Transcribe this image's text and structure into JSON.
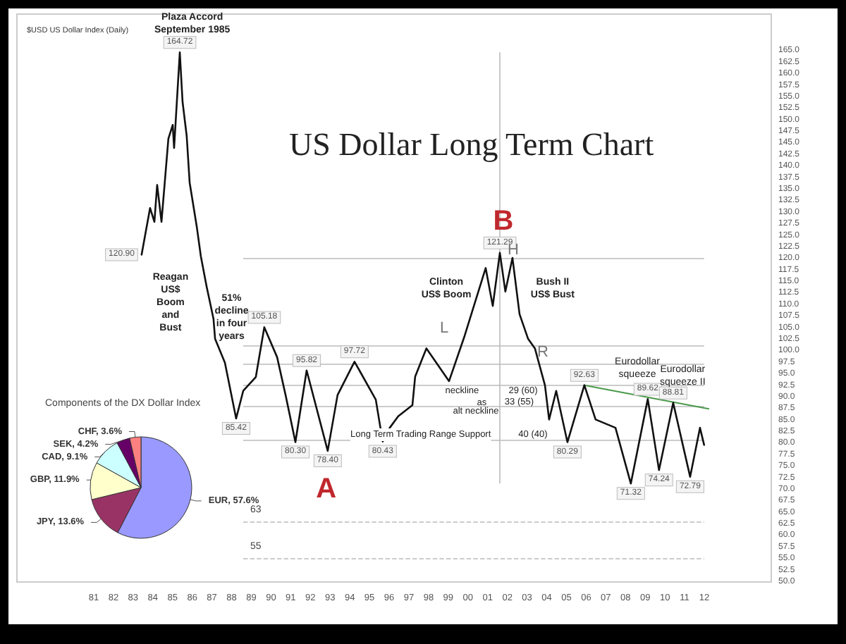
{
  "chart_data": [
    {
      "type": "line",
      "title": "US Dollar Long Term Chart",
      "subtitle": "$USD US Dollar Index (Daily)",
      "xlim": [
        1977.1,
        2015.4
      ],
      "ylim": [
        50,
        173
      ],
      "xticks": [
        {
          "value": 1981,
          "label": "81"
        },
        {
          "value": 1982,
          "label": "82"
        },
        {
          "value": 1983,
          "label": "83"
        },
        {
          "value": 1984,
          "label": "84"
        },
        {
          "value": 1985,
          "label": "85"
        },
        {
          "value": 1986,
          "label": "86"
        },
        {
          "value": 1987,
          "label": "87"
        },
        {
          "value": 1988,
          "label": "88"
        },
        {
          "value": 1989,
          "label": "89"
        },
        {
          "value": 1990,
          "label": "90"
        },
        {
          "value": 1991,
          "label": "91"
        },
        {
          "value": 1992,
          "label": "92"
        },
        {
          "value": 1993,
          "label": "93"
        },
        {
          "value": 1994,
          "label": "94"
        },
        {
          "value": 1995,
          "label": "95"
        },
        {
          "value": 1996,
          "label": "96"
        },
        {
          "value": 1997,
          "label": "97"
        },
        {
          "value": 1998,
          "label": "98"
        },
        {
          "value": 1999,
          "label": "99"
        },
        {
          "value": 2000,
          "label": "00"
        },
        {
          "value": 2001,
          "label": "01"
        },
        {
          "value": 2002,
          "label": "02"
        },
        {
          "value": 2003,
          "label": "03"
        },
        {
          "value": 2004,
          "label": "04"
        },
        {
          "value": 2005,
          "label": "05"
        },
        {
          "value": 2006,
          "label": "06"
        },
        {
          "value": 2007,
          "label": "07"
        },
        {
          "value": 2008,
          "label": "08"
        },
        {
          "value": 2009,
          "label": "09"
        },
        {
          "value": 2010,
          "label": "10"
        },
        {
          "value": 2011,
          "label": "11"
        },
        {
          "value": 2012,
          "label": "12"
        }
      ],
      "yticks": [
        {
          "value": 50,
          "label": "50.0"
        },
        {
          "value": 52.5,
          "label": "52.5"
        },
        {
          "value": 55,
          "label": "55.0"
        },
        {
          "value": 57.5,
          "label": "57.5"
        },
        {
          "value": 60,
          "label": "60.0"
        },
        {
          "value": 62.5,
          "label": "62.5"
        },
        {
          "value": 65,
          "label": "65.0"
        },
        {
          "value": 67.5,
          "label": "67.5"
        },
        {
          "value": 70,
          "label": "70.0"
        },
        {
          "value": 72.5,
          "label": "72.5"
        },
        {
          "value": 75,
          "label": "75.0"
        },
        {
          "value": 77.5,
          "label": "77.5"
        },
        {
          "value": 80,
          "label": "80.0"
        },
        {
          "value": 82.5,
          "label": "82.5"
        },
        {
          "value": 85,
          "label": "85.0"
        },
        {
          "value": 87.5,
          "label": "87.5"
        },
        {
          "value": 90,
          "label": "90.0"
        },
        {
          "value": 92.5,
          "label": "92.5"
        },
        {
          "value": 95,
          "label": "95.0"
        },
        {
          "value": 97.5,
          "label": "97.5"
        },
        {
          "value": 100,
          "label": "100.0"
        },
        {
          "value": 102.5,
          "label": "102.5"
        },
        {
          "value": 105,
          "label": "105.0"
        },
        {
          "value": 107.5,
          "label": "107.5"
        },
        {
          "value": 110,
          "label": "110.0"
        },
        {
          "value": 112.5,
          "label": "112.5"
        },
        {
          "value": 115,
          "label": "115.0"
        },
        {
          "value": 117.5,
          "label": "117.5"
        },
        {
          "value": 120,
          "label": "120.0"
        },
        {
          "value": 122.5,
          "label": "122.5"
        },
        {
          "value": 125,
          "label": "125.0"
        },
        {
          "value": 127.5,
          "label": "127.5"
        },
        {
          "value": 130,
          "label": "130.0"
        },
        {
          "value": 132.5,
          "label": "132.5"
        },
        {
          "value": 135,
          "label": "135.0"
        },
        {
          "value": 137.5,
          "label": "137.5"
        },
        {
          "value": 140,
          "label": "140.0"
        },
        {
          "value": 142.5,
          "label": "142.5"
        },
        {
          "value": 145,
          "label": "145.0"
        },
        {
          "value": 147.5,
          "label": "147.5"
        },
        {
          "value": 150,
          "label": "150.0"
        },
        {
          "value": 152.5,
          "label": "152.5"
        },
        {
          "value": 155,
          "label": "155.0"
        },
        {
          "value": 157.5,
          "label": "157.5"
        },
        {
          "value": 160,
          "label": "160.0"
        },
        {
          "value": 162.5,
          "label": "162.5"
        },
        {
          "value": 165,
          "label": "165.0"
        }
      ],
      "marker": "none",
      "line_style": "solid",
      "series": [
        {
          "color": "#111111",
          "x": [
            1983.43,
            1983.86,
            1984.08,
            1984.22,
            1984.44,
            1984.79,
            1985.01,
            1985.08,
            1985.37,
            1985.51,
            1985.72,
            1985.87,
            1986.23,
            1986.44,
            1986.73,
            1987.08,
            1987.16,
            1987.66,
            1988.23,
            1988.59,
            1989.23,
            1989.66,
            1990.31,
            1990.74,
            1991.24,
            1991.81,
            1992.88,
            1993.38,
            1994.24,
            1995.32,
            1995.67,
            1996.03,
            1996.46,
            1997.18,
            1997.32,
            1997.89,
            1999.04,
            1999.83,
            2000.9,
            2001.26,
            2001.62,
            2001.9,
            2002.26,
            2002.62,
            2003.05,
            2003.4,
            2003.91,
            2004.12,
            2004.48,
            2005.05,
            2005.91,
            2006.48,
            2007.49,
            2008.27,
            2009.13,
            2009.7,
            2010.42,
            2011.28,
            2011.78,
            2011.99
          ],
          "values": [
            120.9,
            131,
            128,
            136,
            128,
            146,
            149,
            144,
            164.72,
            154,
            146.6,
            136.5,
            127,
            120.5,
            114,
            107,
            102.7,
            97.5,
            85.42,
            91.4,
            94.4,
            105.18,
            98.7,
            90.5,
            80.3,
            95.82,
            78.4,
            90.5,
            97.72,
            89.5,
            80.43,
            83.4,
            85.9,
            88.3,
            94.5,
            100.6,
            93.5,
            103.3,
            118,
            109.8,
            121.29,
            112.9,
            120.2,
            108,
            102.7,
            100.6,
            92.6,
            85.2,
            91.4,
            80.29,
            92.63,
            85.2,
            83.4,
            71.32,
            89.62,
            74.24,
            88.81,
            72.79,
            83.4,
            79.7
          ],
          "value_labels": [
            "120.90",
            null,
            null,
            null,
            null,
            null,
            null,
            null,
            "164.72",
            null,
            null,
            null,
            null,
            null,
            null,
            null,
            null,
            null,
            "85.42",
            null,
            null,
            "105.18",
            null,
            null,
            "80.30",
            "95.82",
            "78.40",
            null,
            "97.72",
            null,
            "80.43",
            null,
            null,
            null,
            null,
            null,
            null,
            null,
            null,
            null,
            "121.29",
            null,
            null,
            null,
            null,
            null,
            null,
            null,
            null,
            "80.29",
            "92.63",
            null,
            null,
            "71.32",
            "89.62",
            "74.24",
            "88.81",
            "72.79",
            null,
            null
          ]
        },
        {
          "color": "#4c9a4c",
          "x": [
            2005.91,
            2012.22
          ],
          "values": [
            92.6,
            87.5
          ]
        }
      ],
      "ref_lines": [
        {
          "axis": "y",
          "value": 120,
          "color": "#bbbbbb"
        },
        {
          "axis": "y",
          "value": 101.2,
          "color": "#bbbbbb"
        },
        {
          "axis": "y",
          "value": 97.2,
          "color": "#bbbbbb"
        },
        {
          "axis": "y",
          "value": 92.6,
          "color": "#bbbbbb"
        },
        {
          "axis": "y",
          "value": 88,
          "color": "#bbbbbb"
        },
        {
          "axis": "y",
          "value": 80.9,
          "color": "#bbbbbb"
        },
        {
          "axis": "y",
          "value": 63,
          "label": "63",
          "color": "#bbbbbb",
          "line_style": "dashed"
        },
        {
          "axis": "y",
          "value": 55,
          "label": "55",
          "color": "#bbbbbb",
          "line_style": "dashed"
        },
        {
          "axis": "x",
          "value": 2001.62,
          "color": "#bbbbbb"
        }
      ],
      "annotations": [
        "Plaza Accord\nSeptember 1985",
        "Reagan\nUS$\nBoom\nand\nBust",
        "51%\ndecline\nin four\nyears",
        "Clinton\nUS$ Boom",
        "Bush II\nUS$ Bust",
        "L",
        "H",
        "R",
        "B",
        "A",
        "Eurodollar\nsqueeze",
        "Eurodollar\nsqueeze II",
        "neckline",
        "29 (60)",
        "as",
        "alt neckline",
        "33 (55)",
        "Long Term Trading Range Support",
        "40 (40)"
      ],
      "legend": false
    },
    {
      "type": "pie",
      "title": "Components of the DX Dollar Index",
      "categories": [
        "EUR",
        "JPY",
        "GBP",
        "CAD",
        "SEK",
        "CHF"
      ],
      "values": [
        57.6,
        13.6,
        11.9,
        9.1,
        4.2,
        3.6
      ],
      "value_labels": [
        "57.6%",
        "13.6%",
        "11.9%",
        "9.1%",
        "4.2%",
        "3.6%"
      ],
      "colors": [
        "#9999ff",
        "#993366",
        "#ffffcc",
        "#ccffff",
        "#660066",
        "#ff8080"
      ],
      "legend": false
    }
  ]
}
